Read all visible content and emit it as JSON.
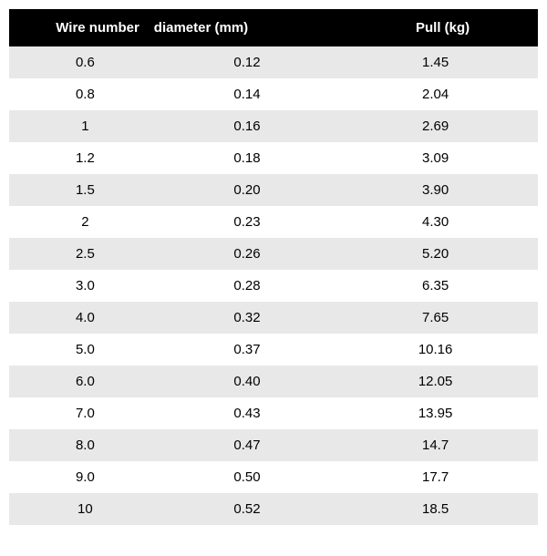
{
  "table": {
    "type": "table",
    "header_bg": "#000000",
    "header_color": "#ffffff",
    "row_even_bg": "#e8e8e8",
    "row_odd_bg": "#ffffff",
    "text_color": "#000000",
    "font_size": 15,
    "columns": [
      {
        "label": "Wire number",
        "align": "center"
      },
      {
        "label": "diameter (mm)",
        "align": "center"
      },
      {
        "label": "Pull (kg)",
        "align": "center"
      }
    ],
    "rows": [
      {
        "wire": "0.6",
        "diameter": "0.12",
        "pull": "1.45"
      },
      {
        "wire": "0.8",
        "diameter": "0.14",
        "pull": "2.04"
      },
      {
        "wire": "1",
        "diameter": "0.16",
        "pull": "2.69"
      },
      {
        "wire": "1.2",
        "diameter": "0.18",
        "pull": "3.09"
      },
      {
        "wire": "1.5",
        "diameter": "0.20",
        "pull": "3.90"
      },
      {
        "wire": "2",
        "diameter": "0.23",
        "pull": "4.30"
      },
      {
        "wire": "2.5",
        "diameter": "0.26",
        "pull": "5.20"
      },
      {
        "wire": "3.0",
        "diameter": "0.28",
        "pull": "6.35"
      },
      {
        "wire": "4.0",
        "diameter": "0.32",
        "pull": "7.65"
      },
      {
        "wire": "5.0",
        "diameter": "0.37",
        "pull": "10.16"
      },
      {
        "wire": "6.0",
        "diameter": "0.40",
        "pull": "12.05"
      },
      {
        "wire": "7.0",
        "diameter": "0.43",
        "pull": "13.95"
      },
      {
        "wire": "8.0",
        "diameter": "0.47",
        "pull": "14.7"
      },
      {
        "wire": "9.0",
        "diameter": "0.50",
        "pull": "17.7"
      },
      {
        "wire": "10",
        "diameter": "0.52",
        "pull": "18.5"
      }
    ]
  }
}
